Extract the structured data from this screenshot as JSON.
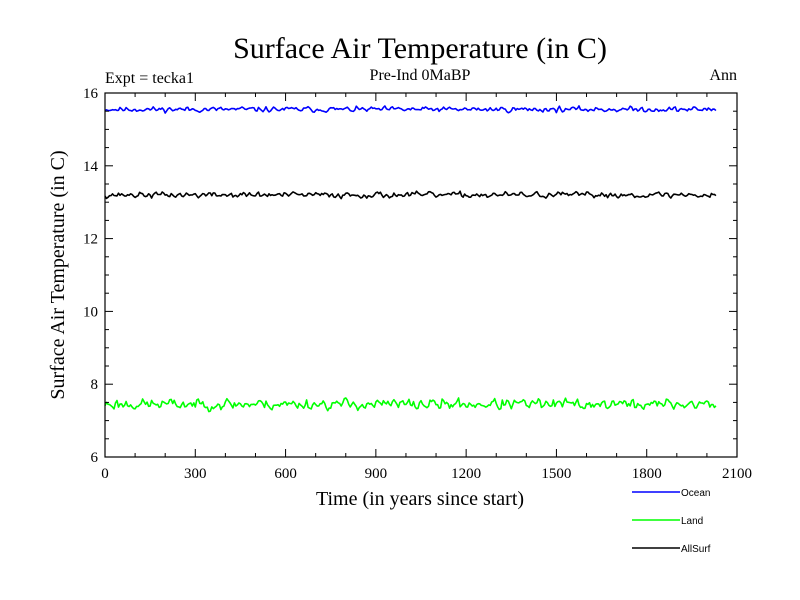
{
  "chart_data": {
    "type": "line",
    "title": "Surface Air Temperature (in C)",
    "subtitle_left": "Expt = tecka1",
    "subtitle_center": "Pre-Ind 0MaBP",
    "subtitle_right": "Ann",
    "xlabel": "Time (in years since start)",
    "ylabel": "Surface Air Temperature (in C)",
    "xlim": [
      0,
      2100
    ],
    "ylim": [
      6,
      16
    ],
    "xticks": [
      0,
      300,
      600,
      900,
      1200,
      1500,
      1800,
      2100
    ],
    "xtick_labels": [
      "0",
      "300",
      "600",
      "900",
      "1200",
      "1500",
      "1800",
      "2100"
    ],
    "yticks": [
      6,
      8,
      10,
      12,
      14,
      16
    ],
    "ytick_labels": [
      "6",
      "8",
      "10",
      "12",
      "14",
      "16"
    ],
    "x_start": 0,
    "x_end": 2030,
    "x_step": 5,
    "legend_position": "bottom-right, below axes",
    "series": [
      {
        "name": "Ocean",
        "color": "#0000ff",
        "mean": 15.55,
        "amplitude": 0.14,
        "seed": 11
      },
      {
        "name": "Land",
        "color": "#00ff00",
        "mean": 7.45,
        "amplitude": 0.3,
        "seed": 23
      },
      {
        "name": "AllSurf",
        "color": "#000000",
        "mean": 13.2,
        "amplitude": 0.16,
        "seed": 37
      }
    ]
  }
}
